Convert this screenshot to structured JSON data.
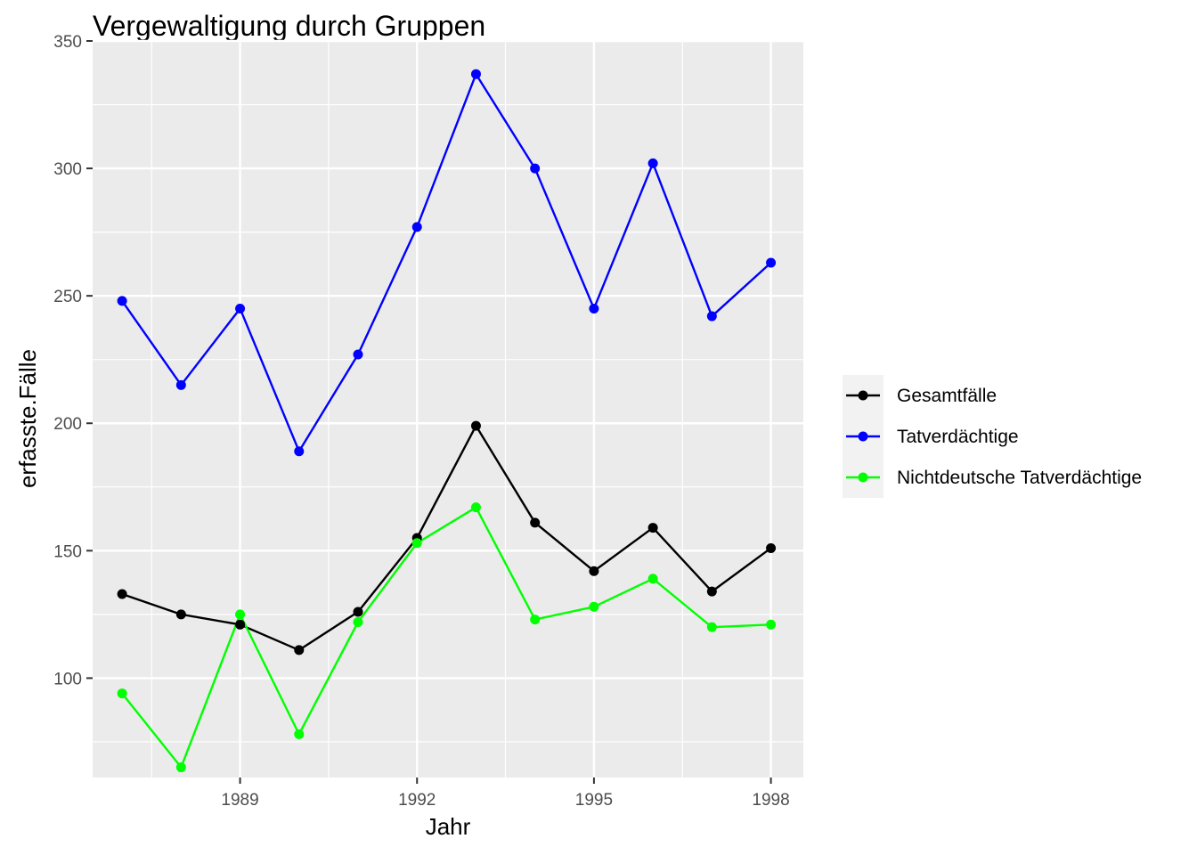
{
  "chart_data": {
    "type": "line",
    "title": "Vergewaltigung durch Gruppen",
    "xlabel": "Jahr",
    "ylabel": "erfasste.Fälle",
    "xlim": [
      1986.5,
      1998.55
    ],
    "ylim": [
      61,
      350
    ],
    "x_ticks": [
      1989,
      1992,
      1995,
      1998
    ],
    "y_ticks": [
      100,
      150,
      200,
      250,
      300,
      350
    ],
    "grid": true,
    "legend_position": "right",
    "x": [
      1987,
      1988,
      1989,
      1990,
      1991,
      1992,
      1993,
      1994,
      1995,
      1996,
      1997,
      1998
    ],
    "series": [
      {
        "name": "Gesamtfälle",
        "color": "#000000",
        "values": [
          133,
          125,
          121,
          111,
          126,
          155,
          199,
          161,
          142,
          159,
          134,
          151
        ]
      },
      {
        "name": "Tatverdächtige",
        "color": "#0000ff",
        "values": [
          248,
          215,
          245,
          189,
          227,
          277,
          337,
          300,
          245,
          302,
          242,
          263
        ]
      },
      {
        "name": "Nichtdeutsche Tatverdächtige",
        "color": "#00ff00",
        "values": [
          94,
          65,
          125,
          78,
          122,
          153,
          167,
          123,
          128,
          139,
          120,
          121
        ]
      }
    ]
  }
}
